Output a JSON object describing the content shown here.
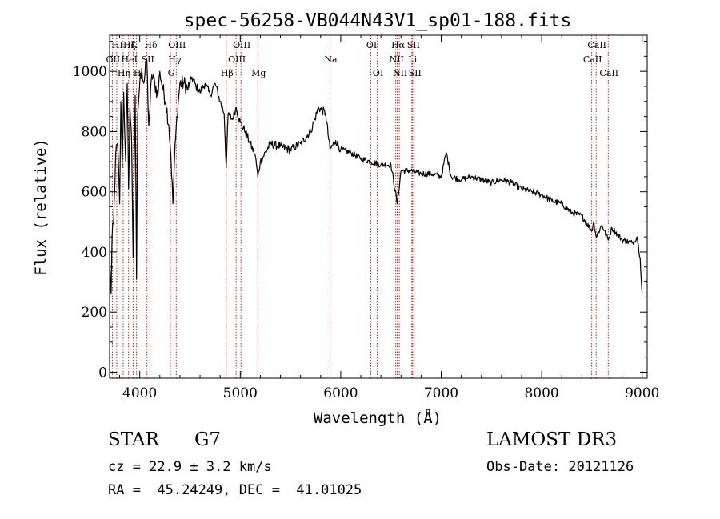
{
  "chart_data": {
    "type": "line",
    "title": "spec-56258-VB044N43V1_sp01-188.fits",
    "xlabel": "Wavelength (Å)",
    "ylabel": "Flux (relative)",
    "xlim": [
      3700,
      9050
    ],
    "ylim": [
      -20,
      1120
    ],
    "x_ticks": [
      4000,
      5000,
      6000,
      7000,
      8000,
      9000
    ],
    "y_ticks": [
      0,
      200,
      400,
      600,
      800,
      1000
    ],
    "y_tick_labels": [
      "0",
      "200",
      "400",
      "600",
      "800",
      "1000"
    ],
    "line_color": "#000000",
    "marker_color": "#cc0000",
    "spectrum_anchor_points": [
      [
        3700,
        20
      ],
      [
        3705,
        340
      ],
      [
        3715,
        260
      ],
      [
        3725,
        450
      ],
      [
        3740,
        500
      ],
      [
        3760,
        720
      ],
      [
        3780,
        760
      ],
      [
        3800,
        560
      ],
      [
        3812,
        900
      ],
      [
        3825,
        680
      ],
      [
        3840,
        930
      ],
      [
        3860,
        700
      ],
      [
        3875,
        960
      ],
      [
        3889,
        610
      ],
      [
        3902,
        880
      ],
      [
        3920,
        760
      ],
      [
        3934,
        380
      ],
      [
        3945,
        700
      ],
      [
        3955,
        920
      ],
      [
        3968,
        310
      ],
      [
        3980,
        860
      ],
      [
        4000,
        960
      ],
      [
        4020,
        1010
      ],
      [
        4040,
        960
      ],
      [
        4070,
        1040
      ],
      [
        4090,
        820
      ],
      [
        4102,
        880
      ],
      [
        4120,
        990
      ],
      [
        4150,
        960
      ],
      [
        4180,
        920
      ],
      [
        4200,
        1000
      ],
      [
        4230,
        940
      ],
      [
        4260,
        900
      ],
      [
        4290,
        820
      ],
      [
        4310,
        720
      ],
      [
        4330,
        560
      ],
      [
        4345,
        700
      ],
      [
        4370,
        850
      ],
      [
        4400,
        960
      ],
      [
        4440,
        960
      ],
      [
        4480,
        940
      ],
      [
        4520,
        980
      ],
      [
        4560,
        950
      ],
      [
        4600,
        930
      ],
      [
        4650,
        960
      ],
      [
        4700,
        920
      ],
      [
        4750,
        960
      ],
      [
        4800,
        900
      ],
      [
        4840,
        860
      ],
      [
        4861,
        680
      ],
      [
        4880,
        860
      ],
      [
        4920,
        840
      ],
      [
        4960,
        880
      ],
      [
        5000,
        830
      ],
      [
        5050,
        800
      ],
      [
        5100,
        760
      ],
      [
        5150,
        720
      ],
      [
        5175,
        650
      ],
      [
        5200,
        700
      ],
      [
        5300,
        760
      ],
      [
        5400,
        750
      ],
      [
        5500,
        740
      ],
      [
        5600,
        760
      ],
      [
        5700,
        800
      ],
      [
        5780,
        880
      ],
      [
        5850,
        860
      ],
      [
        5893,
        740
      ],
      [
        5950,
        770
      ],
      [
        6000,
        740
      ],
      [
        6100,
        730
      ],
      [
        6200,
        710
      ],
      [
        6300,
        700
      ],
      [
        6400,
        690
      ],
      [
        6500,
        690
      ],
      [
        6563,
        560
      ],
      [
        6600,
        670
      ],
      [
        6700,
        670
      ],
      [
        6800,
        660
      ],
      [
        6900,
        660
      ],
      [
        7000,
        650
      ],
      [
        7050,
        730
      ],
      [
        7100,
        650
      ],
      [
        7200,
        640
      ],
      [
        7300,
        650
      ],
      [
        7400,
        640
      ],
      [
        7500,
        630
      ],
      [
        7600,
        640
      ],
      [
        7700,
        630
      ],
      [
        7800,
        610
      ],
      [
        7900,
        600
      ],
      [
        8000,
        590
      ],
      [
        8100,
        570
      ],
      [
        8200,
        560
      ],
      [
        8300,
        530
      ],
      [
        8400,
        520
      ],
      [
        8498,
        470
      ],
      [
        8520,
        500
      ],
      [
        8542,
        450
      ],
      [
        8600,
        490
      ],
      [
        8662,
        440
      ],
      [
        8700,
        480
      ],
      [
        8800,
        440
      ],
      [
        8900,
        430
      ],
      [
        8950,
        450
      ],
      [
        8980,
        380
      ],
      [
        9000,
        260
      ]
    ],
    "spectral_lines": [
      {
        "label": "HI",
        "wavelength": 3771,
        "row": 0
      },
      {
        "label": "OII",
        "wavelength": 3727,
        "row": 1
      },
      {
        "label": "Hη",
        "wavelength": 3835,
        "row": 2
      },
      {
        "label": "Hζ",
        "wavelength": 3889,
        "row": 0
      },
      {
        "label": "HeI",
        "wavelength": 3889,
        "row": 1
      },
      {
        "label": "K",
        "wavelength": 3934,
        "row": 0
      },
      {
        "label": "H",
        "wavelength": 3968,
        "row": 2
      },
      {
        "label": "SII",
        "wavelength": 4072,
        "row": 1
      },
      {
        "label": "Hδ",
        "wavelength": 4102,
        "row": 0
      },
      {
        "label": "OIII",
        "wavelength": 4363,
        "row": 0
      },
      {
        "label": "Hγ",
        "wavelength": 4340,
        "row": 1
      },
      {
        "label": "G",
        "wavelength": 4305,
        "row": 2
      },
      {
        "label": "Hβ",
        "wavelength": 4861,
        "row": 2
      },
      {
        "label": "OIII",
        "wavelength": 5007,
        "row": 0
      },
      {
        "label": "OIII",
        "wavelength": 4959,
        "row": 1
      },
      {
        "label": "Mg",
        "wavelength": 5175,
        "row": 2
      },
      {
        "label": "Na",
        "wavelength": 5893,
        "row": 1
      },
      {
        "label": "OI",
        "wavelength": 6300,
        "row": 0
      },
      {
        "label": "OI",
        "wavelength": 6364,
        "row": 2
      },
      {
        "label": "Hα",
        "wavelength": 6563,
        "row": 0
      },
      {
        "label": "SII",
        "wavelength": 6716,
        "row": 0
      },
      {
        "label": "NII",
        "wavelength": 6548,
        "row": 1
      },
      {
        "label": "Li",
        "wavelength": 6708,
        "row": 1
      },
      {
        "label": "NII",
        "wavelength": 6583,
        "row": 2
      },
      {
        "label": "SII",
        "wavelength": 6731,
        "row": 2
      },
      {
        "label": "CaII",
        "wavelength": 8542,
        "row": 0
      },
      {
        "label": "CaII",
        "wavelength": 8498,
        "row": 1
      },
      {
        "label": "CaII",
        "wavelength": 8662,
        "row": 2
      }
    ]
  },
  "info": {
    "object_class": "STAR",
    "subclass": "G7",
    "survey": "LAMOST DR3",
    "velocity": "cz = 22.9 ± 3.2 km/s",
    "obs_date": "Obs-Date: 20121126",
    "coords": "RA =  45.24249, DEC =  41.01025"
  }
}
